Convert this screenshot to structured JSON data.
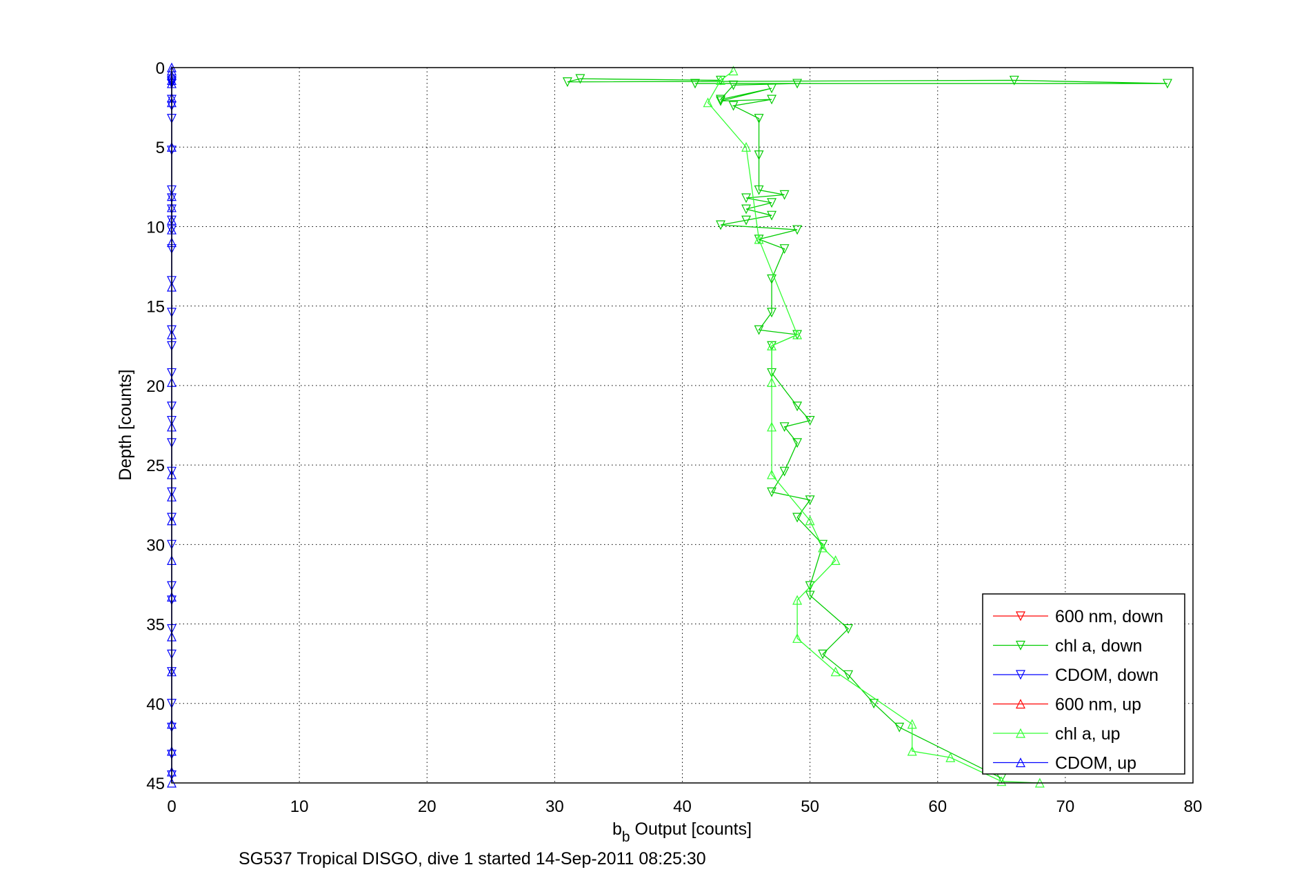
{
  "chart_data": {
    "type": "line",
    "title": "",
    "xlabel_main": "b",
    "xlabel_sub": "b",
    "xlabel_rest": " Output [counts]",
    "ylabel": "Depth [counts]",
    "caption": "SG537 Tropical DISGO, dive 1 started 14-Sep-2011 08:25:30",
    "xlim": [
      0,
      80
    ],
    "ylim": [
      0,
      45
    ],
    "y_reversed": true,
    "grid": true,
    "x_ticks": [
      "0",
      "10",
      "20",
      "30",
      "40",
      "50",
      "60",
      "70",
      "80"
    ],
    "y_ticks": [
      "0",
      "5",
      "10",
      "15",
      "20",
      "25",
      "30",
      "35",
      "40",
      "45"
    ],
    "legend_position": "bottom-right",
    "series": [
      {
        "name": "600 nm, down",
        "color": "#ff0000",
        "marker": "down",
        "x": [],
        "y": []
      },
      {
        "name": "chl a, down",
        "color": "#00cc00",
        "marker": "down",
        "x": [
          43,
          32,
          31,
          66,
          78,
          41,
          49,
          44,
          43,
          47,
          43,
          47,
          44,
          46,
          46,
          46,
          48,
          45,
          47,
          45,
          47,
          45,
          43,
          49,
          46,
          48,
          47,
          47,
          46,
          49,
          47,
          47,
          49,
          50,
          48,
          49,
          48,
          47,
          50,
          49,
          51,
          50,
          50,
          53,
          51,
          53,
          55,
          57,
          65
        ],
        "y": [
          0.8,
          0.7,
          0.9,
          0.8,
          1.0,
          1.0,
          1.0,
          1.1,
          2.0,
          1.3,
          2.1,
          2.0,
          2.4,
          3.2,
          5.5,
          7.7,
          8.0,
          8.2,
          8.5,
          8.9,
          9.3,
          9.6,
          9.9,
          10.2,
          10.8,
          11.4,
          13.3,
          15.4,
          16.5,
          16.8,
          17.5,
          19.2,
          21.3,
          22.2,
          22.6,
          23.6,
          25.4,
          26.7,
          27.2,
          28.3,
          30.0,
          32.6,
          33.2,
          35.3,
          36.9,
          38.2,
          40.0,
          41.5,
          44.7
        ]
      },
      {
        "name": "CDOM, down",
        "color": "#0000ff",
        "marker": "down",
        "x": [
          0,
          0,
          0,
          0,
          0,
          0,
          0,
          0,
          0,
          0,
          0,
          0,
          0,
          0,
          0,
          0,
          0,
          0,
          0,
          0,
          0,
          0,
          0,
          0,
          0,
          0,
          0,
          0,
          0,
          0,
          0,
          0,
          0,
          0
        ],
        "y": [
          0.8,
          0.9,
          1.0,
          2.0,
          2.4,
          3.2,
          5.2,
          7.7,
          8.2,
          8.9,
          9.6,
          10.2,
          11.4,
          13.4,
          15.4,
          16.5,
          17.5,
          19.2,
          21.3,
          22.2,
          23.6,
          25.4,
          26.7,
          28.3,
          30.0,
          32.6,
          33.5,
          35.3,
          36.9,
          38.0,
          40.0,
          41.5,
          43.2,
          44.5
        ]
      },
      {
        "name": "600 nm, up",
        "color": "#ff0000",
        "marker": "up",
        "x": [],
        "y": []
      },
      {
        "name": "chl a, up",
        "color": "#33ff33",
        "marker": "up",
        "x": [
          68,
          65,
          61,
          58,
          58,
          52,
          49,
          49,
          52,
          51,
          50,
          47,
          47,
          47,
          47,
          49,
          46,
          45,
          42,
          43,
          44
        ],
        "y": [
          45.0,
          44.9,
          43.4,
          43.0,
          41.3,
          38.0,
          35.9,
          33.5,
          31.0,
          30.2,
          28.5,
          25.6,
          22.6,
          19.8,
          17.5,
          16.8,
          10.8,
          5.0,
          2.2,
          0.8,
          0.2
        ]
      },
      {
        "name": "CDOM, up",
        "color": "#0000ff",
        "marker": "up",
        "x": [
          0,
          0,
          0,
          0,
          0,
          0,
          0,
          0,
          0,
          0,
          0,
          0,
          0,
          0,
          0,
          0,
          0,
          0,
          0,
          0,
          0,
          0,
          0,
          0,
          0,
          0,
          0,
          0
        ],
        "y": [
          45.0,
          44.3,
          43.0,
          41.3,
          38.0,
          35.8,
          33.3,
          31.0,
          28.5,
          27.0,
          25.6,
          22.6,
          19.8,
          16.8,
          13.8,
          11.0,
          10.2,
          9.6,
          8.8,
          8.1,
          5.0,
          2.2,
          1.9,
          1.0,
          0.8,
          0.5,
          0.2,
          0.0
        ]
      }
    ]
  }
}
